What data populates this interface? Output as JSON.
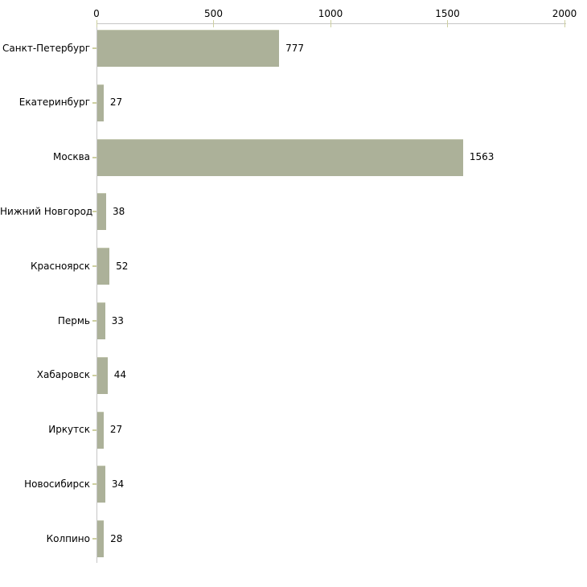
{
  "chart_data": {
    "type": "bar",
    "orientation": "horizontal",
    "categories": [
      "Санкт-Петербург",
      "Екатеринбург",
      "Москва",
      "Нижний Новгород",
      "Красноярск",
      "Пермь",
      "Хабаровск",
      "Иркутск",
      "Новосибирск",
      "Колпино"
    ],
    "values": [
      777,
      27,
      1563,
      38,
      52,
      33,
      44,
      27,
      34,
      28
    ],
    "xticks": [
      0,
      500,
      1000,
      1500,
      2000
    ],
    "xlim": [
      0,
      2000
    ],
    "grid": false,
    "legend": "none",
    "axis_position": "top",
    "value_labels": true,
    "colors": {
      "bar_fill": "#acb199",
      "bar_top_edge": "#c4c8b1",
      "tick_mark": "#cdcfa0",
      "axis_line": "#c6c6c6",
      "text": "#000000",
      "background": "#ffffff"
    }
  }
}
